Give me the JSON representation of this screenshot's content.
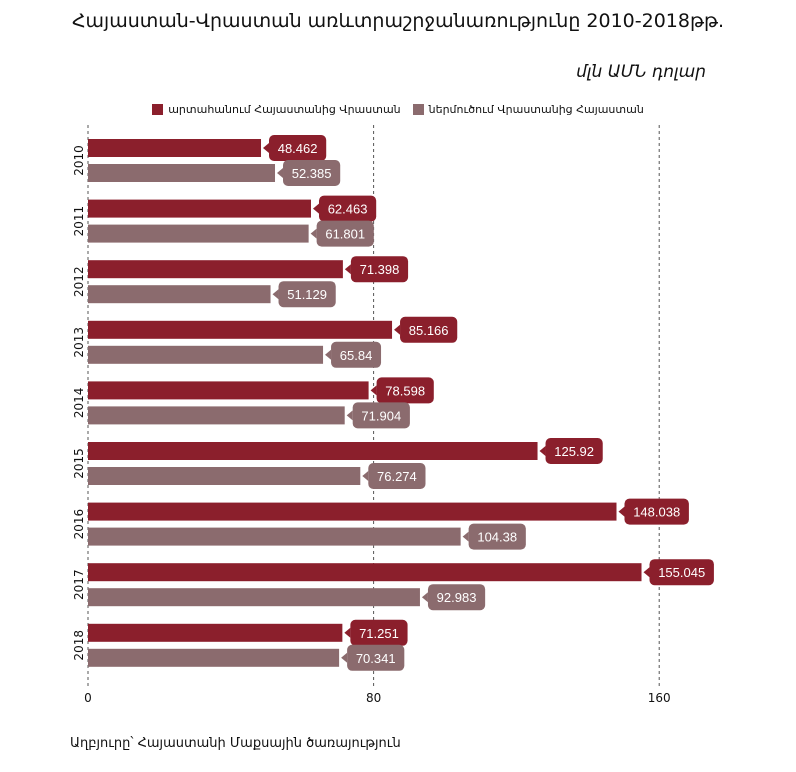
{
  "title": "Հայաստան-Վրաստան առևտրաշրջանառությունը 2010-2018թթ.",
  "unit": "մլն ԱՄՆ դոլար",
  "source": "Աղբյուրը՝ Հայաստանի Մաքսային ծառայություն",
  "colors": {
    "export": "#8b1f2c",
    "import": "#8b6b6e",
    "grid": "#555555"
  },
  "chart_data": {
    "type": "bar",
    "orientation": "horizontal",
    "categories": [
      "2010",
      "2011",
      "2012",
      "2013",
      "2014",
      "2015",
      "2016",
      "2017",
      "2018"
    ],
    "series": [
      {
        "name": "արտահանում Հայաստանից Վրաստան",
        "values": [
          48.462,
          62.463,
          71.398,
          85.166,
          78.598,
          125.92,
          148.038,
          155.045,
          71.251
        ]
      },
      {
        "name": "ներմուծում Վրաստանից Հայաստան",
        "values": [
          52.385,
          61.801,
          51.129,
          65.84,
          71.904,
          76.274,
          104.38,
          92.983,
          70.341
        ]
      }
    ],
    "value_labels": [
      [
        "48.462",
        "62.463",
        "71.398",
        "85.166",
        "78.598",
        "125.92",
        "148.038",
        "155.045",
        "71.251"
      ],
      [
        "52.385",
        "61.801",
        "51.129",
        "65.84",
        "71.904",
        "76.274",
        "104.38",
        "92.983",
        "70.341"
      ]
    ],
    "xlim": [
      0,
      200
    ],
    "xticks": [
      "0",
      "80",
      "160"
    ],
    "grid": "vertical dashed",
    "legend": "top-center"
  }
}
